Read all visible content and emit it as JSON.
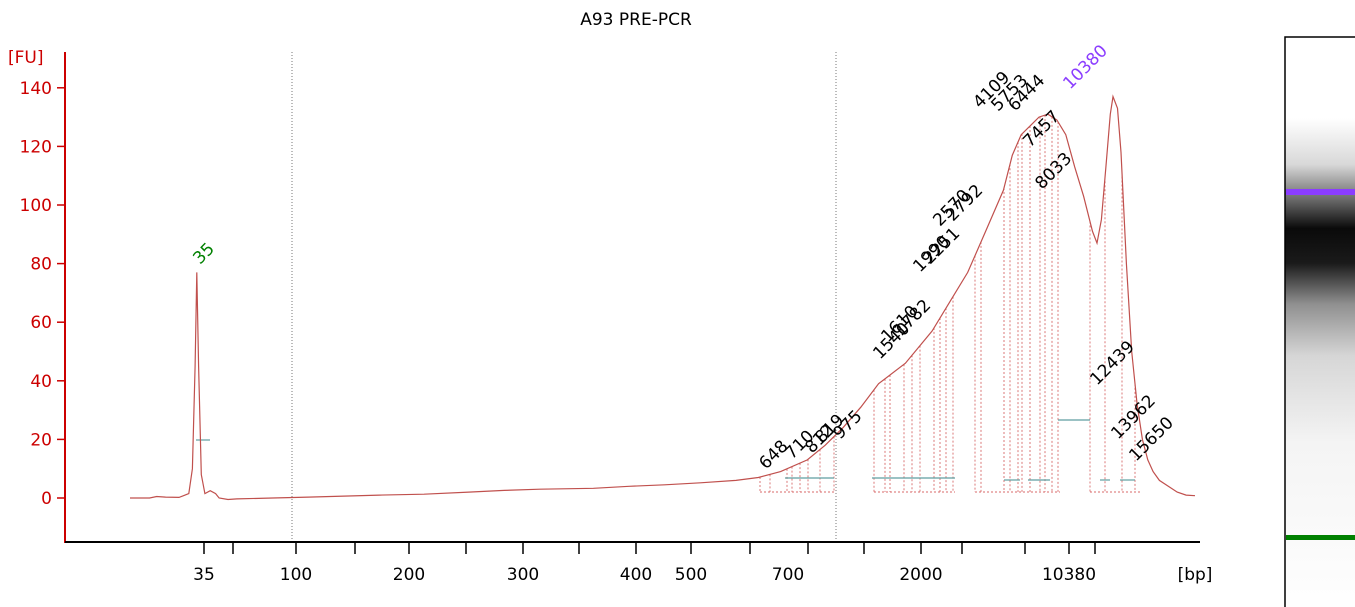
{
  "chart_data": {
    "type": "line",
    "title": "A93 PRE-PCR",
    "ylabel": "[FU]",
    "xlabel": "[bp]",
    "ylim": [
      -13,
      150
    ],
    "yticks": [
      0,
      20,
      40,
      60,
      80,
      100,
      120,
      140
    ],
    "ytick_labels": [
      "0",
      "20",
      "40",
      "60",
      "80",
      "100",
      "120",
      "140"
    ],
    "xtick_labels": [
      "35",
      "100",
      "200",
      "300",
      "400",
      "500",
      "700",
      "2000",
      "10380",
      "[bp]"
    ],
    "grid": false,
    "colors": {
      "trace": "#c0504d",
      "axis": "#cc0000",
      "marker_low": "#008000",
      "marker_high": "#8b3dff",
      "smear_line": "#5f9ea0"
    },
    "marker_labels": [
      {
        "label": "35",
        "fu": 77,
        "color": "#008000"
      },
      {
        "label": "10380",
        "fu": 137,
        "color": "#8b3dff"
      }
    ],
    "peak_labels": [
      "648",
      "710",
      "812",
      "819",
      "975",
      "1540",
      "1610",
      "1782",
      "1990",
      "2251",
      "2570",
      "2792",
      "4109",
      "5753",
      "6444",
      "7457",
      "8033",
      "12439",
      "13962",
      "15650"
    ],
    "series": [
      {
        "name": "",
        "values": [
          [
            0,
            0
          ],
          [
            22,
            0
          ],
          [
            30,
            0.5
          ],
          [
            40,
            0.3
          ],
          [
            55,
            0.2
          ],
          [
            60,
            0.8
          ],
          [
            66,
            1.5
          ],
          [
            70,
            10
          ],
          [
            73,
            45
          ],
          [
            75,
            77
          ],
          [
            77,
            45
          ],
          [
            80,
            8
          ],
          [
            84,
            1.5
          ],
          [
            90,
            2.5
          ],
          [
            96,
            1.5
          ],
          [
            100,
            0
          ],
          [
            110,
            -0.5
          ],
          [
            120,
            -0.3
          ],
          [
            160,
            0
          ],
          [
            200,
            0.3
          ],
          [
            280,
            1
          ],
          [
            330,
            1.3
          ],
          [
            380,
            2
          ],
          [
            420,
            2.6
          ],
          [
            460,
            3
          ],
          [
            520,
            3.3
          ],
          [
            560,
            4
          ],
          [
            600,
            4.5
          ],
          [
            640,
            5.2
          ],
          [
            680,
            6
          ],
          [
            705,
            7
          ],
          [
            730,
            9
          ],
          [
            760,
            13
          ],
          [
            780,
            18
          ],
          [
            800,
            24
          ],
          [
            820,
            31
          ],
          [
            840,
            39
          ],
          [
            870,
            46
          ],
          [
            900,
            57
          ],
          [
            920,
            67
          ],
          [
            940,
            77
          ],
          [
            960,
            91
          ],
          [
            980,
            105
          ],
          [
            990,
            117
          ],
          [
            1000,
            124
          ],
          [
            1010,
            127
          ],
          [
            1020,
            130
          ],
          [
            1030,
            131
          ],
          [
            1040,
            129
          ],
          [
            1050,
            124
          ],
          [
            1060,
            113
          ],
          [
            1070,
            103
          ],
          [
            1080,
            91
          ],
          [
            1085,
            87
          ],
          [
            1090,
            95
          ],
          [
            1095,
            113
          ],
          [
            1100,
            131
          ],
          [
            1103,
            137
          ],
          [
            1108,
            133
          ],
          [
            1112,
            118
          ],
          [
            1118,
            80
          ],
          [
            1124,
            50
          ],
          [
            1130,
            32
          ],
          [
            1136,
            20
          ],
          [
            1142,
            13
          ],
          [
            1148,
            9
          ],
          [
            1155,
            6
          ],
          [
            1165,
            4
          ],
          [
            1175,
            2
          ],
          [
            1185,
            1
          ],
          [
            1195,
            0.8
          ]
        ]
      }
    ]
  }
}
